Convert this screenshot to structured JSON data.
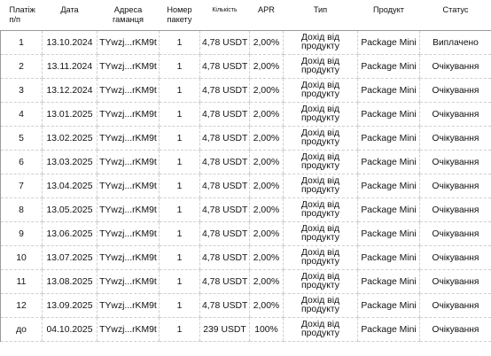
{
  "headers": [
    "Платіж п/п",
    "Дата",
    "Адреса гаманця",
    "Номер пакету",
    "Кількість",
    "APR",
    "Тип",
    "Продукт",
    "Статус"
  ],
  "rows": [
    {
      "n": "1",
      "date": "13.10.2024",
      "wallet": "TYwzj...rKM9t",
      "pkg": "1",
      "amount": "4,78 USDT",
      "apr": "2,00%",
      "type": "Дохід від продукту",
      "product": "Package Mini",
      "status": "Виплачено"
    },
    {
      "n": "2",
      "date": "13.11.2024",
      "wallet": "TYwzj...rKM9t",
      "pkg": "1",
      "amount": "4,78 USDT",
      "apr": "2,00%",
      "type": "Дохід від продукту",
      "product": "Package Mini",
      "status": "Очікування"
    },
    {
      "n": "3",
      "date": "13.12.2024",
      "wallet": "TYwzj...rKM9t",
      "pkg": "1",
      "amount": "4,78 USDT",
      "apr": "2,00%",
      "type": "Дохід від продукту",
      "product": "Package Mini",
      "status": "Очікування"
    },
    {
      "n": "4",
      "date": "13.01.2025",
      "wallet": "TYwzj...rKM9t",
      "pkg": "1",
      "amount": "4,78 USDT",
      "apr": "2,00%",
      "type": "Дохід від продукту",
      "product": "Package Mini",
      "status": "Очікування"
    },
    {
      "n": "5",
      "date": "13.02.2025",
      "wallet": "TYwzj...rKM9t",
      "pkg": "1",
      "amount": "4,78 USDT",
      "apr": "2,00%",
      "type": "Дохід від продукту",
      "product": "Package Mini",
      "status": "Очікування"
    },
    {
      "n": "6",
      "date": "13.03.2025",
      "wallet": "TYwzj...rKM9t",
      "pkg": "1",
      "amount": "4,78 USDT",
      "apr": "2,00%",
      "type": "Дохід від продукту",
      "product": "Package Mini",
      "status": "Очікування"
    },
    {
      "n": "7",
      "date": "13.04.2025",
      "wallet": "TYwzj...rKM9t",
      "pkg": "1",
      "amount": "4,78 USDT",
      "apr": "2,00%",
      "type": "Дохід від продукту",
      "product": "Package Mini",
      "status": "Очікування"
    },
    {
      "n": "8",
      "date": "13.05.2025",
      "wallet": "TYwzj...rKM9t",
      "pkg": "1",
      "amount": "4,78 USDT",
      "apr": "2,00%",
      "type": "Дохід від продукту",
      "product": "Package Mini",
      "status": "Очікування"
    },
    {
      "n": "9",
      "date": "13.06.2025",
      "wallet": "TYwzj...rKM9t",
      "pkg": "1",
      "amount": "4,78 USDT",
      "apr": "2,00%",
      "type": "Дохід від продукту",
      "product": "Package Mini",
      "status": "Очікування"
    },
    {
      "n": "10",
      "date": "13.07.2025",
      "wallet": "TYwzj...rKM9t",
      "pkg": "1",
      "amount": "4,78 USDT",
      "apr": "2,00%",
      "type": "Дохід від продукту",
      "product": "Package Mini",
      "status": "Очікування"
    },
    {
      "n": "11",
      "date": "13.08.2025",
      "wallet": "TYwzj...rKM9t",
      "pkg": "1",
      "amount": "4,78 USDT",
      "apr": "2,00%",
      "type": "Дохід від продукту",
      "product": "Package Mini",
      "status": "Очікування"
    },
    {
      "n": "12",
      "date": "13.09.2025",
      "wallet": "TYwzj...rKM9t",
      "pkg": "1",
      "amount": "4,78 USDT",
      "apr": "2,00%",
      "type": "Дохід від продукту",
      "product": "Package Mini",
      "status": "Очікування"
    },
    {
      "n": "до",
      "date": "04.10.2025",
      "wallet": "TYwzj...rKM9t",
      "pkg": "1",
      "amount": "239 USDT",
      "apr": "100%",
      "type": "Дохід від продукту",
      "product": "Package Mini",
      "status": "Очікування"
    }
  ]
}
